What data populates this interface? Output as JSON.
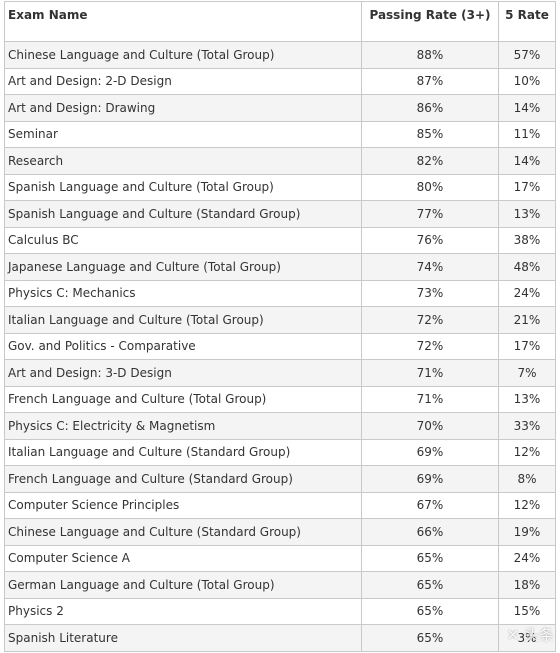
{
  "table": {
    "headers": {
      "name": "Exam Name",
      "passing_rate": "Passing Rate (3+)",
      "five_rate": "5 Rate"
    },
    "rows": [
      {
        "name": "Chinese Language and Culture (Total Group)",
        "passing_rate": "88%",
        "five_rate": "57%"
      },
      {
        "name": "Art and Design: 2-D Design",
        "passing_rate": "87%",
        "five_rate": "10%"
      },
      {
        "name": "Art and Design: Drawing",
        "passing_rate": "86%",
        "five_rate": "14%"
      },
      {
        "name": "Seminar",
        "passing_rate": "85%",
        "five_rate": "11%"
      },
      {
        "name": "Research",
        "passing_rate": "82%",
        "five_rate": "14%"
      },
      {
        "name": "Spanish Language and Culture (Total Group)",
        "passing_rate": "80%",
        "five_rate": "17%"
      },
      {
        "name": "Spanish Language and Culture (Standard Group)",
        "passing_rate": "77%",
        "five_rate": "13%"
      },
      {
        "name": "Calculus BC",
        "passing_rate": "76%",
        "five_rate": "38%"
      },
      {
        "name": "Japanese Language and Culture (Total Group)",
        "passing_rate": "74%",
        "five_rate": "48%"
      },
      {
        "name": "Physics C: Mechanics",
        "passing_rate": "73%",
        "five_rate": "24%"
      },
      {
        "name": "Italian Language and Culture (Total Group)",
        "passing_rate": "72%",
        "five_rate": "21%"
      },
      {
        "name": "Gov. and Politics - Comparative",
        "passing_rate": "72%",
        "five_rate": "17%"
      },
      {
        "name": "Art and Design: 3-D Design",
        "passing_rate": "71%",
        "five_rate": "7%"
      },
      {
        "name": "French Language and Culture (Total Group)",
        "passing_rate": "71%",
        "five_rate": "13%"
      },
      {
        "name": "Physics C: Electricity & Magnetism",
        "passing_rate": "70%",
        "five_rate": "33%"
      },
      {
        "name": "Italian Language and Culture (Standard Group)",
        "passing_rate": "69%",
        "five_rate": "12%"
      },
      {
        "name": "French Language and Culture (Standard Group)",
        "passing_rate": "69%",
        "five_rate": "8%"
      },
      {
        "name": "Computer Science Principles",
        "passing_rate": "67%",
        "five_rate": "12%"
      },
      {
        "name": "Chinese Language and Culture (Standard Group)",
        "passing_rate": "66%",
        "five_rate": "19%"
      },
      {
        "name": "Computer Science A",
        "passing_rate": "65%",
        "five_rate": "24%"
      },
      {
        "name": "German Language and Culture (Total Group)",
        "passing_rate": "65%",
        "five_rate": "18%"
      },
      {
        "name": "Physics 2",
        "passing_rate": "65%",
        "five_rate": "15%"
      },
      {
        "name": "Spanish Literature",
        "passing_rate": "65%",
        "five_rate": "3%"
      }
    ]
  },
  "watermark": {
    "text": "✕ 头条"
  }
}
